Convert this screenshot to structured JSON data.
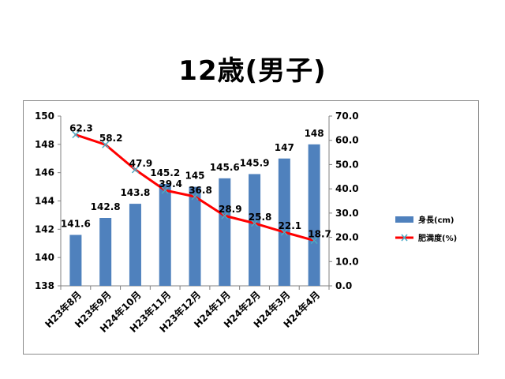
{
  "page": {
    "title": "12歳(男子)"
  },
  "chart_data": {
    "type": "bar",
    "categories": [
      "H23年8月",
      "H23年9月",
      "H24年10月",
      "H23年11月",
      "H23年12月",
      "H24年1月",
      "H24年2月",
      "H24年3月",
      "H24年4月"
    ],
    "series": [
      {
        "name": "身長(cm)",
        "type": "bar",
        "axis": "left",
        "color": "#4f81bd",
        "values": [
          141.6,
          142.8,
          143.8,
          145.2,
          145,
          145.6,
          145.9,
          147,
          148
        ],
        "labels": [
          "141.6",
          "142.8",
          "143.8",
          "145.2",
          "145",
          "145.6",
          "145.9",
          "147",
          "148"
        ]
      },
      {
        "name": "肥満度(%)",
        "type": "line",
        "axis": "right",
        "color": "#ff0000",
        "marker_color": "#4bacc6",
        "values": [
          62.3,
          58.2,
          47.9,
          39.4,
          36.8,
          28.9,
          25.8,
          22.1,
          18.7
        ],
        "labels": [
          "62.3",
          "58.2",
          "47.9",
          "39.4",
          "36.8",
          "28.9",
          "25.8",
          "22.1",
          "18.7"
        ]
      }
    ],
    "left_axis": {
      "min": 138,
      "max": 150,
      "ticks": [
        "138",
        "140",
        "142",
        "144",
        "146",
        "148",
        "150"
      ]
    },
    "right_axis": {
      "min": 0,
      "max": 70,
      "ticks": [
        "0.0",
        "10.0",
        "20.0",
        "30.0",
        "40.0",
        "50.0",
        "60.0",
        "70.0"
      ]
    },
    "grid": false,
    "legend_position": "right"
  }
}
